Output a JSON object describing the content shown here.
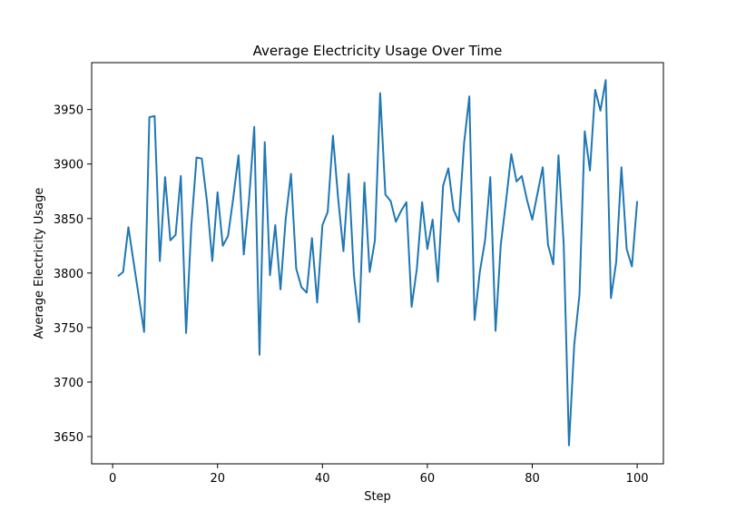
{
  "chart_data": {
    "type": "line",
    "title": "Average Electricity Usage Over Time",
    "xlabel": "Step",
    "ylabel": "Average Electricity Usage",
    "xlim": [
      -4,
      105
    ],
    "ylim": [
      3625,
      3993
    ],
    "xticks": [
      0,
      20,
      40,
      60,
      80,
      100
    ],
    "yticks": [
      3650,
      3700,
      3750,
      3800,
      3850,
      3900,
      3950
    ],
    "grid": false,
    "line_color": "#1f77b4",
    "series": [
      {
        "x": [
          1,
          2,
          3,
          4,
          5,
          6,
          7,
          8,
          9,
          10,
          11,
          12,
          13,
          14,
          15,
          16,
          17,
          18,
          19,
          20,
          21,
          22,
          23,
          24,
          25,
          26,
          27,
          28,
          29,
          30,
          31,
          32,
          33,
          34,
          35,
          36,
          37,
          38,
          39,
          40,
          41,
          42,
          43,
          44,
          45,
          46,
          47,
          48,
          49,
          50,
          51,
          52,
          53,
          54,
          55,
          56,
          57,
          58,
          59,
          60,
          61,
          62,
          63,
          64,
          65,
          66,
          67,
          68,
          69,
          70,
          71,
          72,
          73,
          74,
          75,
          76,
          77,
          78,
          79,
          80,
          81,
          82,
          83,
          84,
          85,
          86,
          87,
          88,
          89,
          90,
          91,
          92,
          93,
          94,
          95,
          96,
          97,
          98,
          99,
          100
        ],
        "values": [
          3797,
          3801,
          3842,
          3810,
          3778,
          3746,
          3943,
          3944,
          3811,
          3888,
          3830,
          3835,
          3889,
          3745,
          3843,
          3906,
          3905,
          3865,
          3811,
          3874,
          3825,
          3834,
          3869,
          3908,
          3817,
          3867,
          3934,
          3725,
          3920,
          3798,
          3844,
          3785,
          3850,
          3891,
          3804,
          3787,
          3782,
          3832,
          3773,
          3844,
          3856,
          3926,
          3868,
          3820,
          3891,
          3798,
          3755,
          3883,
          3801,
          3830,
          3965,
          3872,
          3866,
          3847,
          3857,
          3865,
          3769,
          3804,
          3865,
          3822,
          3849,
          3792,
          3880,
          3896,
          3858,
          3847,
          3919,
          3962,
          3757,
          3801,
          3830,
          3888,
          3747,
          3826,
          3866,
          3909,
          3884,
          3889,
          3867,
          3849,
          3873,
          3897,
          3826,
          3808,
          3908,
          3826,
          3642,
          3734,
          3780,
          3930,
          3894,
          3968,
          3949,
          3977,
          3777,
          3810,
          3897,
          3822,
          3806,
          3866
        ]
      }
    ]
  }
}
